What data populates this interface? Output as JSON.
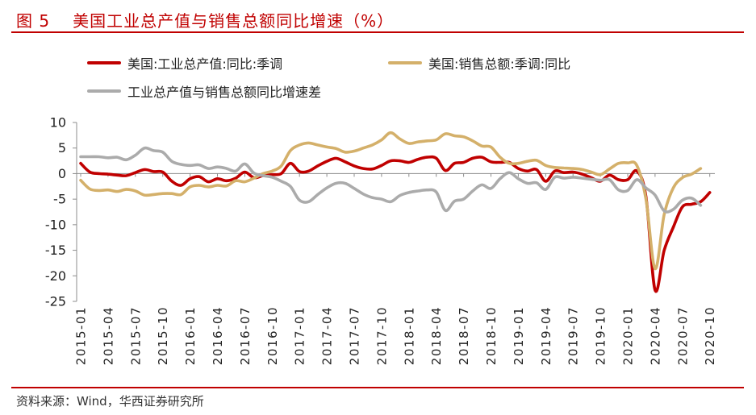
{
  "source": "资料来源：Wind，华西证券研究所",
  "chart_data": {
    "type": "line",
    "figure_label": "图 5",
    "title": "美国工业总产值与销售总额同比增速（%）",
    "xlabel": "",
    "ylabel": "",
    "ylim": [
      -25,
      10
    ],
    "y_ticks": [
      10,
      5,
      0,
      -5,
      -10,
      -15,
      -20,
      -25
    ],
    "months_per_tick": 3,
    "x_tick_labels": [
      "2015-01",
      "2015-04",
      "2015-07",
      "2015-10",
      "2016-01",
      "2016-04",
      "2016-07",
      "2016-10",
      "2017-01",
      "2017-04",
      "2017-07",
      "2017-10",
      "2018-01",
      "2018-04",
      "2018-07",
      "2018-10",
      "2019-01",
      "2019-04",
      "2019-07",
      "2019-10",
      "2020-01",
      "2020-04",
      "2020-07",
      "2020-10"
    ],
    "legend_position": "top",
    "grid": false,
    "series": [
      {
        "name": "美国:工业总产值:同比:季调",
        "color": "#C00000",
        "values": [
          2.0,
          0.3,
          0.0,
          -0.1,
          -0.3,
          -0.4,
          0.2,
          0.8,
          0.4,
          0.3,
          -1.5,
          -2.3,
          -1.0,
          -0.6,
          -1.6,
          -1.0,
          -1.4,
          -0.9,
          0.3,
          -0.8,
          -0.4,
          -0.2,
          0.0,
          2.0,
          0.4,
          0.5,
          1.5,
          2.4,
          3.0,
          2.3,
          1.5,
          1.0,
          0.9,
          1.6,
          2.5,
          2.5,
          2.2,
          2.8,
          3.2,
          3.0,
          0.6,
          2.0,
          2.2,
          3.0,
          3.2,
          2.3,
          2.2,
          2.2,
          1.0,
          0.5,
          0.8,
          -1.5,
          0.5,
          0.2,
          0.3,
          -0.1,
          -0.8,
          -1.5,
          -0.3,
          -1.2,
          -1.2,
          0.5,
          -4.5,
          -22.8,
          -15.0,
          -10.5,
          -6.5,
          -6.0,
          -5.5,
          -3.7
        ]
      },
      {
        "name": "美国:销售总额:季调:同比",
        "color": "#D4B06A",
        "values": [
          -1.3,
          -3.0,
          -3.3,
          -3.2,
          -3.5,
          -3.1,
          -3.4,
          -4.2,
          -4.1,
          -3.9,
          -3.9,
          -4.1,
          -2.6,
          -2.3,
          -2.6,
          -2.3,
          -2.4,
          -1.4,
          -1.6,
          -0.9,
          0.0,
          0.5,
          1.5,
          4.5,
          5.6,
          6.0,
          5.6,
          5.2,
          4.9,
          4.2,
          4.4,
          5.0,
          5.6,
          6.6,
          8.0,
          6.8,
          5.9,
          6.2,
          6.4,
          6.6,
          7.8,
          7.4,
          7.2,
          6.4,
          5.4,
          5.2,
          3.2,
          2.0,
          2.0,
          2.4,
          2.6,
          1.6,
          1.2,
          1.1,
          1.0,
          0.8,
          0.3,
          -0.2,
          0.9,
          2.0,
          2.1,
          1.6,
          -5.0,
          -18.6,
          -8.0,
          -2.8,
          -0.8,
          -0.1,
          1.0
        ]
      },
      {
        "name": "工业总产值与销售总额同比增速差",
        "color": "#ABABAB",
        "values": [
          3.3,
          3.3,
          3.3,
          3.1,
          3.2,
          2.7,
          3.6,
          5.0,
          4.5,
          4.2,
          2.4,
          1.8,
          1.6,
          1.7,
          1.0,
          1.3,
          1.0,
          0.5,
          1.9,
          0.1,
          -0.4,
          -0.7,
          -1.5,
          -2.5,
          -5.2,
          -5.5,
          -4.1,
          -2.8,
          -1.9,
          -1.9,
          -2.9,
          -4.0,
          -4.7,
          -5.0,
          -5.5,
          -4.3,
          -3.7,
          -3.4,
          -3.2,
          -3.6,
          -7.2,
          -5.4,
          -5.0,
          -3.4,
          -2.2,
          -2.9,
          -1.0,
          0.2,
          -1.0,
          -1.9,
          -1.8,
          -3.1,
          -0.7,
          -0.9,
          -0.7,
          -0.9,
          -1.1,
          -1.3,
          -1.2,
          -3.2,
          -3.3,
          -1.2,
          -2.8,
          -4.2,
          -7.3,
          -7.0,
          -5.2,
          -4.8,
          -6.2
        ]
      }
    ]
  }
}
